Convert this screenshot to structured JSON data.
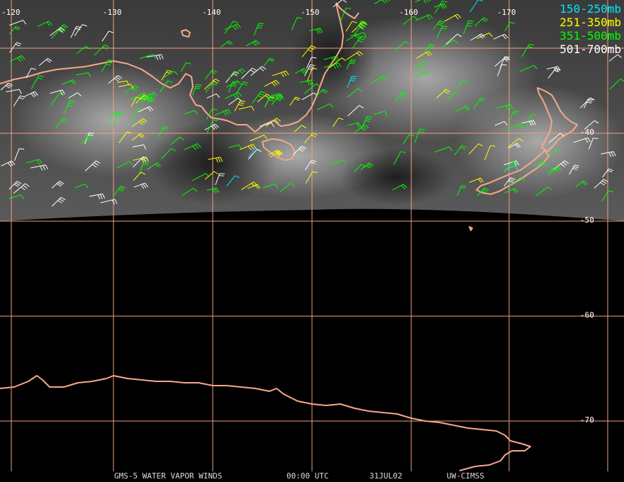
{
  "longitude_labels": [
    "-120",
    "-130",
    "-140",
    "-150",
    "-160",
    "-170"
  ],
  "latitude_labels": [
    "-40",
    "-50",
    "-60",
    "-70"
  ],
  "legend": [
    {
      "label": "150-250mb",
      "color": "#00e5ff"
    },
    {
      "label": "251-350mb",
      "color": "#ffff00"
    },
    {
      "label": "351-500mb",
      "color": "#00ff00"
    },
    {
      "label": "501-700mb",
      "color": "#ffffff"
    }
  ],
  "footer": {
    "satellite": "GMS-5 WATER VAPOR WINDS",
    "time": "00:00 UTC",
    "date": "31JUL02",
    "source": "UW-CIMSS"
  },
  "colors": {
    "grid": "#f0a080",
    "coast": "#f5a88a",
    "background": "#000000"
  }
}
